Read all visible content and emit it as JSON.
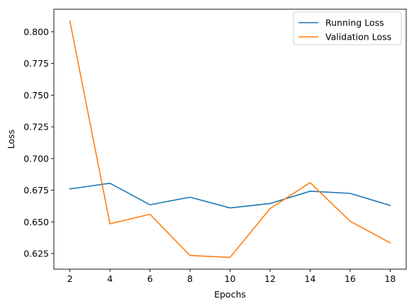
{
  "chart_data": {
    "type": "line",
    "title": "",
    "xlabel": "Epochs",
    "ylabel": "Loss",
    "x": [
      2,
      4,
      6,
      8,
      10,
      12,
      14,
      16,
      18
    ],
    "xticks": [
      "2",
      "4",
      "6",
      "8",
      "10",
      "12",
      "14",
      "16",
      "18"
    ],
    "yticks": [
      "0.625",
      "0.650",
      "0.675",
      "0.700",
      "0.725",
      "0.750",
      "0.775",
      "0.800"
    ],
    "xlim": [
      1.2,
      18.8
    ],
    "ylim": [
      0.6127,
      0.8178
    ],
    "grid": false,
    "legend_position": "top-right",
    "series": [
      {
        "name": "Running Loss",
        "color": "#1f77b4",
        "values": [
          0.676,
          0.6805,
          0.6635,
          0.6695,
          0.661,
          0.6645,
          0.6742,
          0.6725,
          0.663
        ]
      },
      {
        "name": "Validation Loss",
        "color": "#ff7f0e",
        "values": [
          0.8085,
          0.6485,
          0.656,
          0.6235,
          0.622,
          0.6605,
          0.681,
          0.6505,
          0.6335
        ]
      }
    ]
  }
}
